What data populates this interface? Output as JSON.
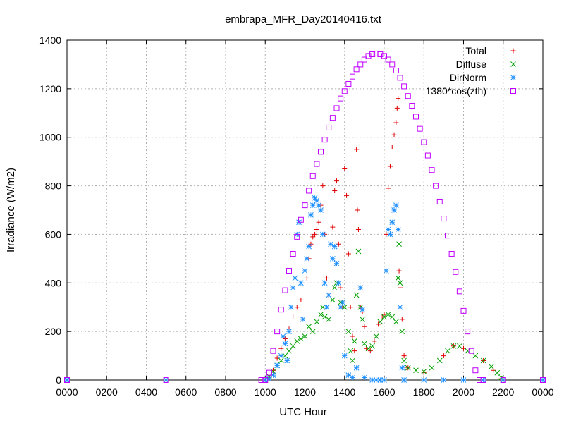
{
  "chart_data": {
    "type": "scatter",
    "title": "embrapa_MFR_Day20140416.txt",
    "xlabel": "UTC Hour",
    "ylabel": "Irradiance (W/m2)",
    "xlim": [
      0,
      2400
    ],
    "ylim": [
      0,
      1400
    ],
    "grid": true,
    "legend_position": "top-right",
    "x_ticks": [
      "0000",
      "0200",
      "0400",
      "0600",
      "0800",
      "1000",
      "1200",
      "1400",
      "1600",
      "1800",
      "2000",
      "2200",
      "0000"
    ],
    "y_ticks": [
      "0",
      "200",
      "400",
      "600",
      "800",
      "1000",
      "1200",
      "1400"
    ],
    "series": [
      {
        "name": "Total",
        "color": "#e00000",
        "marker": "plus",
        "points": [
          [
            0,
            0
          ],
          [
            500,
            0
          ],
          [
            1000,
            0
          ],
          [
            1020,
            10
          ],
          [
            1040,
            40
          ],
          [
            1060,
            90
          ],
          [
            1080,
            130
          ],
          [
            1100,
            170
          ],
          [
            1120,
            210
          ],
          [
            1140,
            260
          ],
          [
            1160,
            300
          ],
          [
            1180,
            330
          ],
          [
            1200,
            350
          ],
          [
            1210,
            420
          ],
          [
            1220,
            500
          ],
          [
            1230,
            560
          ],
          [
            1240,
            590
          ],
          [
            1250,
            600
          ],
          [
            1260,
            620
          ],
          [
            1270,
            650
          ],
          [
            1280,
            720
          ],
          [
            1290,
            800
          ],
          [
            1300,
            600
          ],
          [
            1310,
            420
          ],
          [
            1320,
            350
          ],
          [
            1340,
            630
          ],
          [
            1350,
            780
          ],
          [
            1360,
            820
          ],
          [
            1370,
            560
          ],
          [
            1380,
            380
          ],
          [
            1390,
            300
          ],
          [
            1400,
            870
          ],
          [
            1410,
            760
          ],
          [
            1420,
            520
          ],
          [
            1430,
            300
          ],
          [
            1440,
            180
          ],
          [
            1450,
            120
          ],
          [
            1460,
            950
          ],
          [
            1465,
            700
          ],
          [
            1470,
            620
          ],
          [
            1480,
            300
          ],
          [
            1490,
            280
          ],
          [
            1500,
            220
          ],
          [
            1510,
            130
          ],
          [
            1530,
            120
          ],
          [
            1550,
            160
          ],
          [
            1570,
            230
          ],
          [
            1590,
            260
          ],
          [
            1600,
            270
          ],
          [
            1610,
            600
          ],
          [
            1620,
            790
          ],
          [
            1630,
            880
          ],
          [
            1640,
            960
          ],
          [
            1650,
            1010
          ],
          [
            1660,
            1060
          ],
          [
            1665,
            1120
          ],
          [
            1670,
            1160
          ],
          [
            1675,
            450
          ],
          [
            1680,
            380
          ],
          [
            1690,
            250
          ],
          [
            1700,
            100
          ],
          [
            1720,
            50
          ],
          [
            1800,
            30
          ],
          [
            1900,
            100
          ],
          [
            1950,
            140
          ],
          [
            2000,
            130
          ],
          [
            2100,
            80
          ],
          [
            2150,
            40
          ],
          [
            2190,
            5
          ],
          [
            2200,
            0
          ],
          [
            2400,
            0
          ]
        ]
      },
      {
        "name": "Diffuse",
        "color": "#00a000",
        "marker": "x",
        "points": [
          [
            0,
            0
          ],
          [
            500,
            0
          ],
          [
            1000,
            0
          ],
          [
            1020,
            15
          ],
          [
            1040,
            35
          ],
          [
            1060,
            60
          ],
          [
            1080,
            80
          ],
          [
            1100,
            100
          ],
          [
            1120,
            120
          ],
          [
            1140,
            140
          ],
          [
            1160,
            160
          ],
          [
            1180,
            170
          ],
          [
            1200,
            180
          ],
          [
            1220,
            220
          ],
          [
            1240,
            200
          ],
          [
            1260,
            240
          ],
          [
            1280,
            270
          ],
          [
            1290,
            300
          ],
          [
            1300,
            260
          ],
          [
            1320,
            250
          ],
          [
            1340,
            330
          ],
          [
            1350,
            380
          ],
          [
            1360,
            400
          ],
          [
            1380,
            320
          ],
          [
            1400,
            300
          ],
          [
            1420,
            200
          ],
          [
            1430,
            120
          ],
          [
            1440,
            80
          ],
          [
            1450,
            160
          ],
          [
            1460,
            350
          ],
          [
            1470,
            530
          ],
          [
            1480,
            300
          ],
          [
            1490,
            250
          ],
          [
            1500,
            150
          ],
          [
            1520,
            130
          ],
          [
            1540,
            140
          ],
          [
            1560,
            180
          ],
          [
            1580,
            240
          ],
          [
            1600,
            260
          ],
          [
            1620,
            270
          ],
          [
            1640,
            260
          ],
          [
            1660,
            240
          ],
          [
            1670,
            420
          ],
          [
            1675,
            560
          ],
          [
            1680,
            400
          ],
          [
            1690,
            200
          ],
          [
            1700,
            80
          ],
          [
            1720,
            50
          ],
          [
            1760,
            40
          ],
          [
            1800,
            35
          ],
          [
            1840,
            50
          ],
          [
            1880,
            80
          ],
          [
            1920,
            120
          ],
          [
            1950,
            140
          ],
          [
            1980,
            140
          ],
          [
            2020,
            120
          ],
          [
            2060,
            100
          ],
          [
            2100,
            80
          ],
          [
            2140,
            55
          ],
          [
            2170,
            30
          ],
          [
            2190,
            10
          ],
          [
            2200,
            0
          ],
          [
            2400,
            0
          ]
        ]
      },
      {
        "name": "DirNorm",
        "color": "#1e90ff",
        "marker": "star",
        "points": [
          [
            0,
            0
          ],
          [
            500,
            0
          ],
          [
            1000,
            0
          ],
          [
            1020,
            5
          ],
          [
            1040,
            20
          ],
          [
            1060,
            60
          ],
          [
            1080,
            100
          ],
          [
            1090,
            180
          ],
          [
            1100,
            150
          ],
          [
            1110,
            80
          ],
          [
            1120,
            200
          ],
          [
            1130,
            300
          ],
          [
            1140,
            380
          ],
          [
            1150,
            420
          ],
          [
            1160,
            600
          ],
          [
            1170,
            650
          ],
          [
            1180,
            400
          ],
          [
            1190,
            250
          ],
          [
            1200,
            450
          ],
          [
            1210,
            500
          ],
          [
            1220,
            550
          ],
          [
            1230,
            680
          ],
          [
            1240,
            720
          ],
          [
            1250,
            750
          ],
          [
            1260,
            740
          ],
          [
            1270,
            720
          ],
          [
            1280,
            700
          ],
          [
            1290,
            600
          ],
          [
            1300,
            400
          ],
          [
            1310,
            300
          ],
          [
            1320,
            350
          ],
          [
            1330,
            560
          ],
          [
            1340,
            500
          ],
          [
            1350,
            550
          ],
          [
            1360,
            480
          ],
          [
            1370,
            400
          ],
          [
            1380,
            300
          ],
          [
            1390,
            320
          ],
          [
            1400,
            100
          ],
          [
            1420,
            20
          ],
          [
            1440,
            10
          ],
          [
            1460,
            50
          ],
          [
            1480,
            380
          ],
          [
            1490,
            290
          ],
          [
            1500,
            10
          ],
          [
            1540,
            0
          ],
          [
            1560,
            0
          ],
          [
            1580,
            0
          ],
          [
            1600,
            0
          ],
          [
            1610,
            450
          ],
          [
            1620,
            620
          ],
          [
            1630,
            600
          ],
          [
            1640,
            650
          ],
          [
            1650,
            700
          ],
          [
            1660,
            720
          ],
          [
            1670,
            620
          ],
          [
            1680,
            300
          ],
          [
            1690,
            50
          ],
          [
            1700,
            0
          ],
          [
            1800,
            0
          ],
          [
            1900,
            0
          ],
          [
            2000,
            0
          ],
          [
            2100,
            0
          ],
          [
            2200,
            0
          ],
          [
            2400,
            0
          ]
        ]
      },
      {
        "name": "1380*cos(zth)",
        "color": "#c000ff",
        "marker": "square",
        "points": [
          [
            0,
            0
          ],
          [
            500,
            0
          ],
          [
            980,
            0
          ],
          [
            1000,
            0
          ],
          [
            1020,
            30
          ],
          [
            1040,
            120
          ],
          [
            1060,
            200
          ],
          [
            1080,
            290
          ],
          [
            1100,
            370
          ],
          [
            1120,
            450
          ],
          [
            1140,
            520
          ],
          [
            1160,
            590
          ],
          [
            1180,
            660
          ],
          [
            1200,
            720
          ],
          [
            1220,
            780
          ],
          [
            1240,
            840
          ],
          [
            1260,
            890
          ],
          [
            1280,
            940
          ],
          [
            1300,
            990
          ],
          [
            1320,
            1040
          ],
          [
            1340,
            1080
          ],
          [
            1360,
            1120
          ],
          [
            1380,
            1160
          ],
          [
            1400,
            1190
          ],
          [
            1420,
            1220
          ],
          [
            1440,
            1250
          ],
          [
            1460,
            1280
          ],
          [
            1480,
            1300
          ],
          [
            1500,
            1320
          ],
          [
            1520,
            1335
          ],
          [
            1540,
            1342
          ],
          [
            1560,
            1345
          ],
          [
            1580,
            1342
          ],
          [
            1600,
            1335
          ],
          [
            1620,
            1320
          ],
          [
            1640,
            1300
          ],
          [
            1660,
            1275
          ],
          [
            1680,
            1245
          ],
          [
            1700,
            1210
          ],
          [
            1720,
            1170
          ],
          [
            1740,
            1130
          ],
          [
            1760,
            1085
          ],
          [
            1780,
            1035
          ],
          [
            1800,
            980
          ],
          [
            1820,
            925
          ],
          [
            1840,
            865
          ],
          [
            1860,
            800
          ],
          [
            1880,
            735
          ],
          [
            1900,
            665
          ],
          [
            1920,
            595
          ],
          [
            1940,
            520
          ],
          [
            1960,
            445
          ],
          [
            1980,
            365
          ],
          [
            2000,
            285
          ],
          [
            2020,
            200
          ],
          [
            2040,
            120
          ],
          [
            2060,
            40
          ],
          [
            2080,
            0
          ],
          [
            2100,
            0
          ],
          [
            2200,
            0
          ],
          [
            2400,
            0
          ]
        ]
      }
    ]
  }
}
